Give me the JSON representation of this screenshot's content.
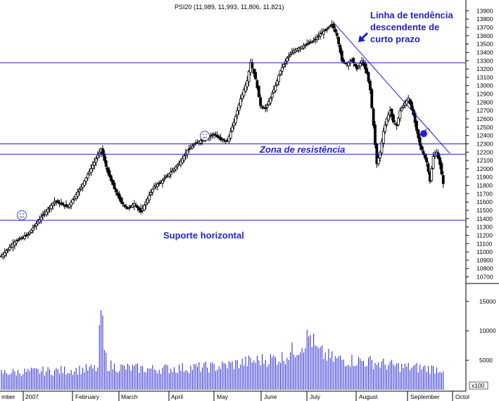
{
  "chart_data": {
    "type": "candlestick",
    "title": "PSI20 (11,989, 11,993, 11,806, 11,821)",
    "price_axis": {
      "ylim": [
        10620,
        13920
      ],
      "ticks": [
        10700,
        10800,
        10900,
        11000,
        11100,
        11200,
        11300,
        11400,
        11500,
        11600,
        11700,
        11800,
        11900,
        12000,
        12100,
        12200,
        12300,
        12400,
        12500,
        12600,
        12700,
        12800,
        12900,
        13000,
        13100,
        13200,
        13300,
        13400,
        13500,
        13600,
        13700,
        13800,
        13900
      ]
    },
    "volume_axis": {
      "scale_label": "x100",
      "ticks": [
        5000,
        10000,
        15000
      ]
    },
    "x_axis": {
      "labels": [
        "mber",
        "2007",
        "February",
        "March",
        "April",
        "May",
        "June",
        "July",
        "August",
        "September",
        "Octol"
      ]
    },
    "horizontal_lines": [
      {
        "label": "Suporte horizontal",
        "value": 11380
      },
      {
        "label": "Zona de resistência",
        "value": 12300
      },
      {
        "label": "",
        "value": 12175
      },
      {
        "label": "",
        "value": 13275
      }
    ],
    "trendline": {
      "label_lines": [
        "Linha de tendência",
        "descendente de",
        "curto prazo"
      ],
      "from": {
        "session": 200,
        "price": 13760
      },
      "to": {
        "session": 270,
        "price": 12185
      }
    },
    "close_anchors": [
      [
        0,
        10950
      ],
      [
        8,
        11120
      ],
      [
        16,
        11210
      ],
      [
        24,
        11420
      ],
      [
        32,
        11610
      ],
      [
        40,
        11540
      ],
      [
        48,
        11780
      ],
      [
        56,
        12080
      ],
      [
        60,
        12240
      ],
      [
        64,
        11960
      ],
      [
        68,
        11760
      ],
      [
        72,
        11600
      ],
      [
        76,
        11520
      ],
      [
        80,
        11580
      ],
      [
        84,
        11480
      ],
      [
        88,
        11640
      ],
      [
        92,
        11790
      ],
      [
        96,
        11840
      ],
      [
        100,
        11920
      ],
      [
        104,
        12000
      ],
      [
        108,
        12090
      ],
      [
        112,
        12220
      ],
      [
        116,
        12290
      ],
      [
        120,
        12340
      ],
      [
        124,
        12380
      ],
      [
        128,
        12420
      ],
      [
        132,
        12350
      ],
      [
        136,
        12330
      ],
      [
        140,
        12560
      ],
      [
        144,
        12840
      ],
      [
        148,
        13060
      ],
      [
        150,
        13280
      ],
      [
        153,
        13080
      ],
      [
        156,
        12760
      ],
      [
        159,
        12720
      ],
      [
        162,
        12850
      ],
      [
        165,
        13000
      ],
      [
        168,
        13180
      ],
      [
        172,
        13330
      ],
      [
        176,
        13420
      ],
      [
        180,
        13460
      ],
      [
        184,
        13500
      ],
      [
        188,
        13540
      ],
      [
        192,
        13620
      ],
      [
        196,
        13680
      ],
      [
        199,
        13740
      ],
      [
        202,
        13600
      ],
      [
        205,
        13300
      ],
      [
        208,
        13260
      ],
      [
        211,
        13310
      ],
      [
        214,
        13200
      ],
      [
        217,
        13300
      ],
      [
        220,
        13150
      ],
      [
        222,
        12950
      ],
      [
        224,
        12520
      ],
      [
        226,
        12060
      ],
      [
        228,
        12200
      ],
      [
        230,
        12450
      ],
      [
        232,
        12600
      ],
      [
        234,
        12700
      ],
      [
        236,
        12560
      ],
      [
        238,
        12520
      ],
      [
        240,
        12700
      ],
      [
        242,
        12760
      ],
      [
        245,
        12850
      ],
      [
        248,
        12650
      ],
      [
        250,
        12460
      ],
      [
        252,
        12280
      ],
      [
        254,
        12180
      ],
      [
        256,
        12080
      ],
      [
        258,
        11850
      ],
      [
        260,
        12150
      ],
      [
        262,
        12200
      ],
      [
        264,
        12050
      ],
      [
        266,
        11821
      ]
    ],
    "volume_anchors": [
      [
        0,
        2900
      ],
      [
        20,
        3100
      ],
      [
        40,
        3300
      ],
      [
        58,
        3600
      ],
      [
        60,
        14000
      ],
      [
        62,
        6500
      ],
      [
        64,
        4200
      ],
      [
        70,
        3800
      ],
      [
        90,
        3500
      ],
      [
        110,
        3700
      ],
      [
        130,
        3900
      ],
      [
        150,
        4800
      ],
      [
        170,
        5500
      ],
      [
        180,
        7500
      ],
      [
        186,
        9200
      ],
      [
        190,
        6500
      ],
      [
        200,
        5200
      ],
      [
        220,
        4800
      ],
      [
        240,
        3900
      ],
      [
        266,
        3500
      ]
    ]
  }
}
